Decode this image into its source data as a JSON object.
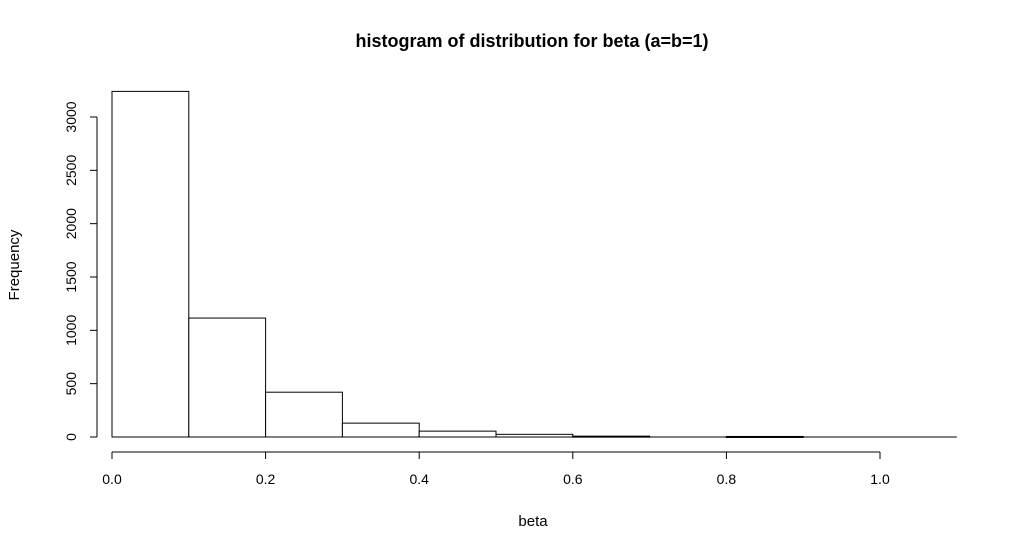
{
  "chart_data": {
    "type": "bar",
    "title": "histogram of distribution for beta (a=b=1)",
    "xlabel": "beta",
    "ylabel": "Frequency",
    "bins": [
      {
        "from": 0.0,
        "to": 0.1,
        "count": 3240
      },
      {
        "from": 0.1,
        "to": 0.2,
        "count": 1115
      },
      {
        "from": 0.2,
        "to": 0.3,
        "count": 420
      },
      {
        "from": 0.3,
        "to": 0.4,
        "count": 130
      },
      {
        "from": 0.4,
        "to": 0.5,
        "count": 55
      },
      {
        "from": 0.5,
        "to": 0.6,
        "count": 25
      },
      {
        "from": 0.6,
        "to": 0.7,
        "count": 8
      },
      {
        "from": 0.7,
        "to": 0.8,
        "count": 0
      },
      {
        "from": 0.8,
        "to": 0.9,
        "count": 5
      },
      {
        "from": 0.9,
        "to": 1.0,
        "count": 0
      },
      {
        "from": 1.0,
        "to": 1.1,
        "count": 0
      }
    ],
    "xlim": [
      0.0,
      1.1
    ],
    "ylim": [
      0,
      3240
    ],
    "x_ticks": [
      "0.0",
      "0.2",
      "0.4",
      "0.6",
      "0.8",
      "1.0"
    ],
    "y_ticks": [
      "0",
      "500",
      "1000",
      "1500",
      "2000",
      "2500",
      "3000"
    ],
    "grid": false
  }
}
